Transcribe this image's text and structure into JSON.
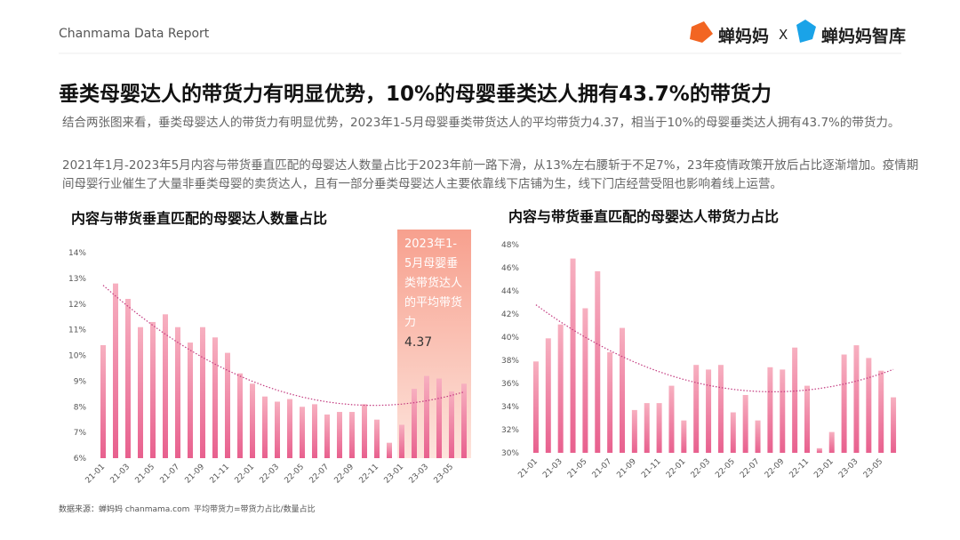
{
  "header": {
    "report": "Chanmama Data Report",
    "brand1": "蝉妈妈",
    "sep": "X",
    "brand2": "蝉妈妈智库"
  },
  "title": "垂类母婴达人的带货力有明显优势，10%的母婴垂类达人拥有43.7%的带货力",
  "paragraphs": [
    "结合两张图来看，垂类母婴达人的带货力有明显优势，2023年1-5月母婴垂类带货达人的平均带货力4.37，相当于10%的母婴垂类达人拥有43.7%的带货力。",
    "2021年1月-2023年5月内容与带货垂直匹配的母婴达人数量占比于2023年前一路下滑，从13%左右腰斩于不足7%，23年疫情政策开放后占比逐渐增加。疫情期间母婴行业催生了大量非垂类母婴的卖货达人，且有一部分垂类母婴达人主要依靠线下店铺为生，线下门店经营受阻也影响着线上运营。"
  ],
  "footer": {
    "source": "数据来源：蝉妈妈 chanmama.com",
    "note": "平均带货力=带货力占比/数量占比"
  },
  "chart_data": [
    {
      "type": "bar",
      "title": "内容与带货垂直匹配的母婴达人数量占比",
      "categories": [
        "21-01",
        null,
        "21-03",
        null,
        "21-05",
        null,
        "21-07",
        null,
        "21-09",
        null,
        "21-11",
        null,
        "22-01",
        null,
        "22-03",
        null,
        "22-05",
        null,
        "22-07",
        null,
        "22-09",
        null,
        "22-11",
        null,
        "23-01",
        null,
        "23-03",
        null,
        "23-05",
        null
      ],
      "values": [
        10.4,
        12.8,
        12.2,
        11.1,
        11.3,
        11.6,
        11.1,
        10.5,
        11.1,
        10.7,
        10.1,
        9.3,
        8.9,
        8.4,
        8.2,
        8.3,
        8.0,
        8.1,
        7.7,
        7.8,
        7.8,
        8.1,
        7.5,
        6.6,
        7.3,
        8.7,
        9.2,
        9.1,
        8.6,
        8.9
      ],
      "color": "#e8608e",
      "ylim": [
        6,
        14
      ],
      "yticks": [
        {
          "value": 6,
          "label": "6%"
        },
        {
          "value": 7,
          "label": "7%"
        },
        {
          "value": 8,
          "label": "8%"
        },
        {
          "value": 9,
          "label": "9%"
        },
        {
          "value": 10,
          "label": "10%"
        },
        {
          "value": 11,
          "label": "11%"
        },
        {
          "value": 12,
          "label": "12%"
        },
        {
          "value": 13,
          "label": "13%"
        },
        {
          "value": 14,
          "label": "14%"
        }
      ],
      "annotation": "2023年1-5月母婴垂类带货达人的平均带货力",
      "annotation_value": 4.37
    },
    {
      "type": "bar",
      "title": "内容与带货垂直匹配的母婴达人带货力占比",
      "categories": [
        "21-01",
        null,
        "21-03",
        null,
        "21-05",
        null,
        "21-07",
        null,
        "21-09",
        null,
        "21-11",
        null,
        "22-01",
        null,
        "22-03",
        null,
        "22-05",
        null,
        "22-07",
        null,
        "22-09",
        null,
        "22-11",
        null,
        "23-01",
        null,
        "23-03",
        null,
        "23-05",
        null
      ],
      "values": [
        37.9,
        39.9,
        41.1,
        46.8,
        42.5,
        45.7,
        38.7,
        40.8,
        33.7,
        34.3,
        34.3,
        35.8,
        32.8,
        37.6,
        37.2,
        37.6,
        33.5,
        35.0,
        32.8,
        37.4,
        37.2,
        39.1,
        35.8,
        30.4,
        31.8,
        38.5,
        39.3,
        38.2,
        37.1,
        34.8
      ],
      "color": "#e8608e",
      "ylim": [
        30,
        48
      ],
      "yticks": [
        {
          "value": 30,
          "label": "30%"
        },
        {
          "value": 32,
          "label": "32%"
        },
        {
          "value": 34,
          "label": "34%"
        },
        {
          "value": 36,
          "label": "36%"
        },
        {
          "value": 38,
          "label": "38%"
        },
        {
          "value": 40,
          "label": "40%"
        },
        {
          "value": 42,
          "label": "42%"
        },
        {
          "value": 44,
          "label": "44%"
        },
        {
          "value": 46,
          "label": "46%"
        },
        {
          "value": 48,
          "label": "48%"
        }
      ]
    }
  ]
}
